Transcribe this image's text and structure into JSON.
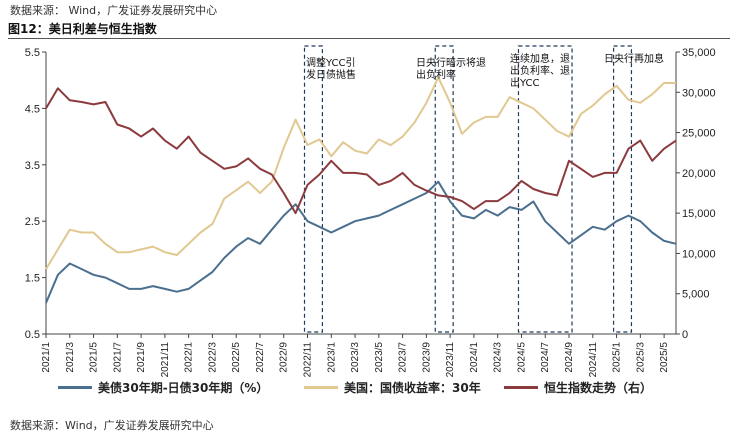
{
  "header": {
    "source": "数据来源： Wind，广发证券发展研究中心",
    "title": "图12：美日利差与恒生指数"
  },
  "footer": {
    "source": "数据来源：Wind，广发证券发展研究中心"
  },
  "colors": {
    "spread": "#4a6f8f",
    "yield": "#e1c890",
    "hsi": "#8b3a3e"
  },
  "annotations": [
    "调整YCC引发日债抛售",
    "日央行暗示将退出负利率",
    "连续加息，退出负利率、退出YCC",
    "日央行再加息"
  ],
  "chart_data": {
    "type": "line",
    "title": "美日利差与恒生指数",
    "x_ticks": [
      "2021/1",
      "2021/3",
      "2021/5",
      "2021/7",
      "2021/9",
      "2021/11",
      "2022/1",
      "2022/3",
      "2022/5",
      "2022/7",
      "2022/9",
      "2022/11",
      "2023/1",
      "2023/3",
      "2023/5",
      "2023/7",
      "2023/9",
      "2023/11",
      "2024/1",
      "2024/3",
      "2024/5",
      "2024/7",
      "2024/9",
      "2024/11",
      "2025/1",
      "2025/3",
      "2025/5"
    ],
    "y_left": {
      "ticks": [
        "0.5",
        "1.5",
        "2.5",
        "3.5",
        "4.5",
        "5.5"
      ],
      "range": [
        0.5,
        5.5
      ]
    },
    "y_right": {
      "ticks": [
        "0",
        "5,000",
        "10,000",
        "15,000",
        "20,000",
        "25,000",
        "30,000",
        "35,000"
      ],
      "range": [
        0,
        35000
      ]
    },
    "series": [
      {
        "name": "美债30年期-日债30年期（%）",
        "axis": "left",
        "x": [
          "2021/1",
          "2021/2",
          "2021/3",
          "2021/4",
          "2021/5",
          "2021/6",
          "2021/7",
          "2021/8",
          "2021/9",
          "2021/10",
          "2021/11",
          "2021/12",
          "2022/1",
          "2022/2",
          "2022/3",
          "2022/4",
          "2022/5",
          "2022/6",
          "2022/7",
          "2022/8",
          "2022/9",
          "2022/10",
          "2022/11",
          "2022/12",
          "2023/1",
          "2023/2",
          "2023/3",
          "2023/4",
          "2023/5",
          "2023/6",
          "2023/7",
          "2023/8",
          "2023/9",
          "2023/10",
          "2023/11",
          "2023/12",
          "2024/1",
          "2024/2",
          "2024/3",
          "2024/4",
          "2024/5",
          "2024/6",
          "2024/7",
          "2024/8",
          "2024/9",
          "2024/10",
          "2024/11",
          "2024/12",
          "2025/1",
          "2025/2",
          "2025/3",
          "2025/4",
          "2025/5",
          "2025/6"
        ],
        "values": [
          1.05,
          1.55,
          1.75,
          1.65,
          1.55,
          1.5,
          1.4,
          1.3,
          1.3,
          1.35,
          1.3,
          1.25,
          1.3,
          1.45,
          1.6,
          1.85,
          2.05,
          2.2,
          2.1,
          2.35,
          2.6,
          2.8,
          2.5,
          2.4,
          2.3,
          2.4,
          2.5,
          2.55,
          2.6,
          2.7,
          2.8,
          2.9,
          3.0,
          3.2,
          2.85,
          2.6,
          2.55,
          2.7,
          2.6,
          2.75,
          2.7,
          2.85,
          2.5,
          2.3,
          2.1,
          2.25,
          2.4,
          2.35,
          2.5,
          2.6,
          2.5,
          2.3,
          2.15,
          2.1
        ]
      },
      {
        "name": "美国：国债收益率：30年",
        "axis": "left",
        "x": [
          "2021/1",
          "2021/2",
          "2021/3",
          "2021/4",
          "2021/5",
          "2021/6",
          "2021/7",
          "2021/8",
          "2021/9",
          "2021/10",
          "2021/11",
          "2021/12",
          "2022/1",
          "2022/2",
          "2022/3",
          "2022/4",
          "2022/5",
          "2022/6",
          "2022/7",
          "2022/8",
          "2022/9",
          "2022/10",
          "2022/11",
          "2022/12",
          "2023/1",
          "2023/2",
          "2023/3",
          "2023/4",
          "2023/5",
          "2023/6",
          "2023/7",
          "2023/8",
          "2023/9",
          "2023/10",
          "2023/11",
          "2023/12",
          "2024/1",
          "2024/2",
          "2024/3",
          "2024/4",
          "2024/5",
          "2024/6",
          "2024/7",
          "2024/8",
          "2024/9",
          "2024/10",
          "2024/11",
          "2024/12",
          "2025/1",
          "2025/2",
          "2025/3",
          "2025/4",
          "2025/5",
          "2025/6"
        ],
        "values": [
          1.65,
          2.0,
          2.35,
          2.3,
          2.3,
          2.1,
          1.95,
          1.95,
          2.0,
          2.05,
          1.95,
          1.9,
          2.1,
          2.3,
          2.45,
          2.9,
          3.05,
          3.2,
          3.0,
          3.2,
          3.8,
          4.3,
          3.85,
          3.95,
          3.65,
          3.9,
          3.75,
          3.7,
          3.95,
          3.85,
          4.0,
          4.25,
          4.6,
          5.05,
          4.6,
          4.05,
          4.25,
          4.35,
          4.35,
          4.7,
          4.6,
          4.5,
          4.3,
          4.1,
          4.0,
          4.4,
          4.55,
          4.75,
          4.9,
          4.65,
          4.6,
          4.75,
          4.95,
          4.95
        ]
      },
      {
        "name": "恒生指数走势（右）",
        "axis": "right",
        "x": [
          "2021/1",
          "2021/2",
          "2021/3",
          "2021/4",
          "2021/5",
          "2021/6",
          "2021/7",
          "2021/8",
          "2021/9",
          "2021/10",
          "2021/11",
          "2021/12",
          "2022/1",
          "2022/2",
          "2022/3",
          "2022/4",
          "2022/5",
          "2022/6",
          "2022/7",
          "2022/8",
          "2022/9",
          "2022/10",
          "2022/11",
          "2022/12",
          "2023/1",
          "2023/2",
          "2023/3",
          "2023/4",
          "2023/5",
          "2023/6",
          "2023/7",
          "2023/8",
          "2023/9",
          "2023/10",
          "2023/11",
          "2023/12",
          "2024/1",
          "2024/2",
          "2024/3",
          "2024/4",
          "2024/5",
          "2024/6",
          "2024/7",
          "2024/8",
          "2024/9",
          "2024/10",
          "2024/11",
          "2024/12",
          "2025/1",
          "2025/2",
          "2025/3",
          "2025/4",
          "2025/5",
          "2025/6"
        ],
        "values": [
          28000,
          30500,
          29000,
          28800,
          28500,
          28800,
          26000,
          25500,
          24500,
          25500,
          24000,
          23000,
          24500,
          22500,
          21500,
          20500,
          20800,
          21800,
          20500,
          19800,
          17500,
          15000,
          18500,
          19800,
          21500,
          20000,
          20000,
          19800,
          18500,
          19000,
          20000,
          18500,
          17800,
          17200,
          17000,
          16500,
          15500,
          16500,
          16500,
          17500,
          19000,
          18000,
          17500,
          17200,
          21500,
          20500,
          19500,
          20000,
          20000,
          23000,
          24000,
          21500,
          23000,
          24000
        ]
      }
    ],
    "legend_position": "bottom"
  }
}
